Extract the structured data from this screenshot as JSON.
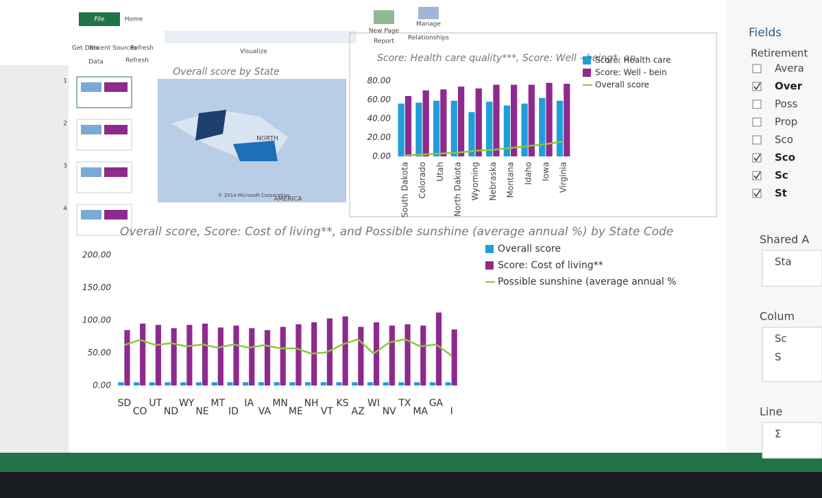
{
  "ribbon": {
    "tabs": [
      "File",
      "Home"
    ],
    "buttons": [
      "Get Data",
      "Recent Sources",
      "Refresh",
      "New Page",
      "Manage"
    ],
    "sublabels": [
      "Report",
      "Relationships"
    ],
    "groups": [
      "Data",
      "Refresh",
      "Visualize"
    ]
  },
  "slides": [
    "1",
    "2",
    "3",
    "4"
  ],
  "map": {
    "title": "Overall score by State",
    "labels": [
      "NORTH",
      "AMERICA"
    ],
    "credit": "© 2014 Microsoft Corporation"
  },
  "fields": {
    "title": "Fields",
    "table": "Retirement",
    "items": [
      {
        "name": "Avera",
        "checked": false
      },
      {
        "name": "Over",
        "checked": true
      },
      {
        "name": "Poss",
        "checked": false
      },
      {
        "name": "Prop",
        "checked": false
      },
      {
        "name": "Sco",
        "checked": false
      },
      {
        "name": "Sco",
        "checked": true
      },
      {
        "name": "Sc",
        "checked": true
      },
      {
        "name": "St",
        "checked": true
      }
    ],
    "sections": [
      {
        "title": "Shared A",
        "items": [
          "Sta"
        ]
      },
      {
        "title": "Colum",
        "items": [
          "Sc",
          "S"
        ]
      },
      {
        "title": "Line",
        "items": [
          "Σ"
        ]
      }
    ]
  },
  "chart_data": [
    {
      "type": "bar",
      "title": "Score: Health care quality***, Score: Well - being*, an",
      "categories": [
        "South Dakota",
        "Colorado",
        "Utah",
        "North Dakota",
        "Wyoming",
        "Nebraska",
        "Montana",
        "Idaho",
        "Iowa",
        "Virginia"
      ],
      "series": [
        {
          "name": "Score: Health care",
          "color": "#1f9fd9",
          "values": [
            56,
            57,
            59,
            59,
            47,
            58,
            54,
            56,
            62,
            59
          ]
        },
        {
          "name": "Score: Well - bein",
          "color": "#8e2a8e",
          "values": [
            64,
            70,
            71,
            74,
            72,
            76,
            76,
            76,
            78,
            77
          ]
        },
        {
          "name": "Overall score",
          "color": "#8cc63f",
          "type": "line",
          "values": [
            1,
            2,
            3,
            4,
            6,
            7,
            9,
            11,
            13,
            16
          ]
        }
      ],
      "ylim": [
        0,
        80
      ],
      "yticks": [
        {
          "value": 0,
          "label": "0.00"
        },
        {
          "value": 20,
          "label": "20.00"
        },
        {
          "value": 40,
          "label": "40.00"
        },
        {
          "value": 60,
          "label": "60.00"
        },
        {
          "value": 80,
          "label": "80.00"
        }
      ],
      "grid": false
    },
    {
      "type": "bar",
      "title": "Overall score, Score: Cost of living**, and Possible sunshine (average annual %) by State Code",
      "categories": [
        "SD",
        "CO",
        "UT",
        "ND",
        "WY",
        "NE",
        "MT",
        "ID",
        "IA",
        "VA",
        "MN",
        "ME",
        "NH",
        "VT",
        "KS",
        "AZ",
        "WI",
        "NV",
        "TX",
        "MA",
        "GA",
        "I"
      ],
      "series": [
        {
          "name": "Overall score",
          "color": "#1f9fd9",
          "values": [
            5,
            5,
            5,
            5,
            5,
            5,
            5,
            5,
            5,
            5,
            5,
            5,
            5,
            5,
            5,
            5,
            5,
            5,
            5,
            5,
            5,
            5
          ]
        },
        {
          "name": "Score: Cost of living**",
          "color": "#8e2a8e",
          "values": [
            85,
            95,
            93,
            88,
            93,
            95,
            89,
            92,
            88,
            85,
            90,
            94,
            97,
            103,
            106,
            90,
            97,
            92,
            94,
            92,
            112,
            86
          ]
        },
        {
          "name": "Possible sunshine (average annual %",
          "color": "#8cc63f",
          "type": "line",
          "values": [
            62,
            70,
            62,
            65,
            60,
            63,
            58,
            63,
            58,
            62,
            57,
            57,
            49,
            51,
            63,
            71,
            49,
            66,
            71,
            60,
            63,
            46
          ]
        }
      ],
      "ylim": [
        0,
        200
      ],
      "yticks": [
        {
          "value": 0,
          "label": "0.00"
        },
        {
          "value": 50,
          "label": "50.00"
        },
        {
          "value": 100,
          "label": "100.00"
        },
        {
          "value": 150,
          "label": "150.00"
        },
        {
          "value": 200,
          "label": "200.00"
        }
      ],
      "grid": false
    }
  ]
}
